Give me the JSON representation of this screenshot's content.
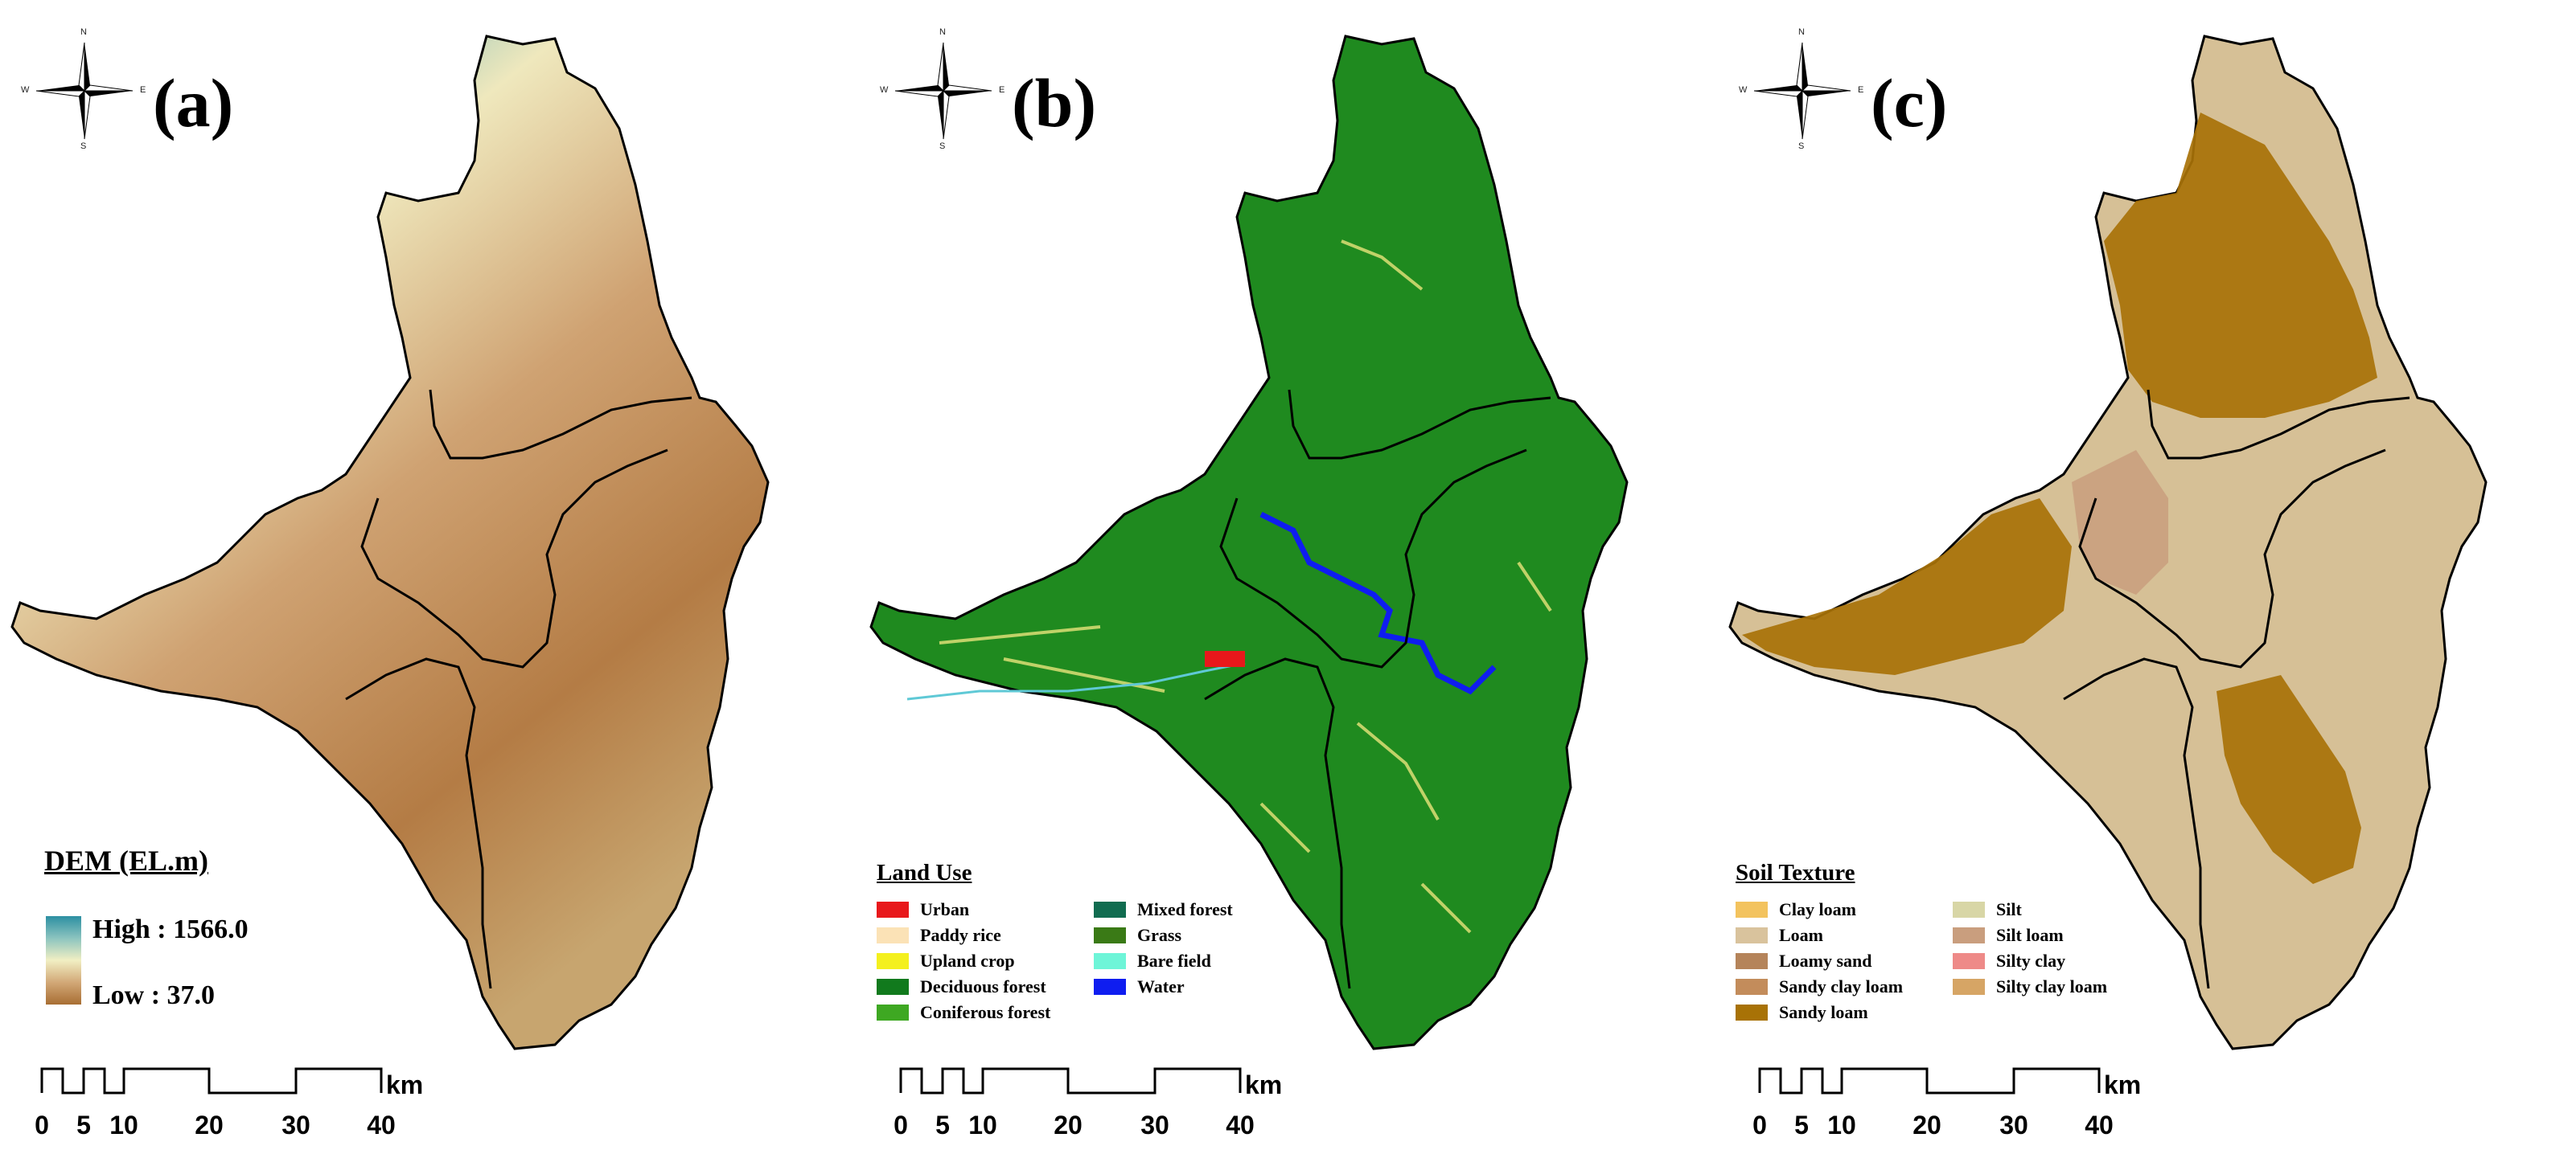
{
  "panels": {
    "a": {
      "label": "(a)"
    },
    "b": {
      "label": "(b)"
    },
    "c": {
      "label": "(c)"
    }
  },
  "compass": {
    "n": "N",
    "s": "S",
    "e": "E",
    "w": "W"
  },
  "dem_legend": {
    "title": "DEM (EL.m)",
    "high_label": "High : 1566.0",
    "low_label": "Low : 37.0",
    "high_color": "#2c8fa2",
    "mid_color": "#f1efc3",
    "low_color": "#a86e33"
  },
  "landuse_legend": {
    "title": "Land Use",
    "items": [
      {
        "label": "Urban",
        "color": "#e8181b"
      },
      {
        "label": "Mixed forest",
        "color": "#116c50"
      },
      {
        "label": "Paddy rice",
        "color": "#fbe2b6"
      },
      {
        "label": "Grass",
        "color": "#3a7a16"
      },
      {
        "label": "Upland crop",
        "color": "#f4f01e"
      },
      {
        "label": "Bare field",
        "color": "#6ef5d8"
      },
      {
        "label": "Deciduous forest",
        "color": "#117a1d"
      },
      {
        "label": "Water",
        "color": "#0f1df0"
      },
      {
        "label": "Coniferous forest",
        "color": "#3ea822"
      }
    ]
  },
  "soil_legend": {
    "title": "Soil Texture",
    "items": [
      {
        "label": "Clay loam",
        "color": "#f3c35e"
      },
      {
        "label": "Silt",
        "color": "#d8d6a6"
      },
      {
        "label": "Loam",
        "color": "#d9c39d"
      },
      {
        "label": "Silt loam",
        "color": "#c99e7e"
      },
      {
        "label": "Loamy sand",
        "color": "#b5845a"
      },
      {
        "label": "Silty clay",
        "color": "#ee8a88"
      },
      {
        "label": "Sandy clay loam",
        "color": "#c38c5b"
      },
      {
        "label": "Silty clay loam",
        "color": "#d6a565"
      },
      {
        "label": "Sandy loam",
        "color": "#a87206"
      }
    ]
  },
  "scalebar": {
    "ticks": [
      "0",
      "5",
      "10",
      "20",
      "30",
      "40"
    ],
    "unit": "km"
  },
  "map_colors": {
    "dem": "#c9a06a",
    "landuse": "#1d8a1e",
    "soil_base": "#d8c29a",
    "soil_dark": "#a87208"
  }
}
